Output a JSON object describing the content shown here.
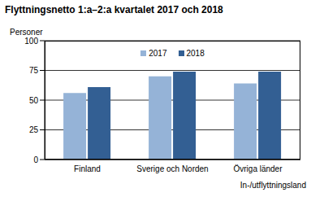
{
  "chart_data": {
    "type": "bar",
    "title": "Flyttningsnetto 1:a–2:a kvartalet 2017 och 2018",
    "y_label": "Personer",
    "x_label": "In-/utflyttningsland",
    "categories": [
      "Finland",
      "Sverige och Norden",
      "Övriga länder"
    ],
    "series": [
      {
        "name": "2017",
        "color": "#95b3d7",
        "values": [
          56,
          70,
          64
        ]
      },
      {
        "name": "2018",
        "color": "#335f93",
        "values": [
          61,
          74,
          74
        ]
      }
    ],
    "ylim": [
      0,
      100
    ],
    "yticks": [
      0,
      25,
      50,
      75,
      100
    ],
    "grid": true,
    "legend": "top"
  }
}
